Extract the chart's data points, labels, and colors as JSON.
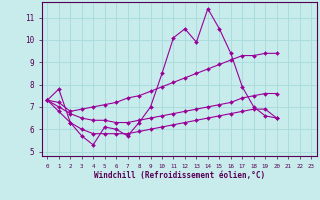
{
  "xlabel": "Windchill (Refroidissement éolien,°C)",
  "bg_color": "#c8ecec",
  "grid_color": "#aadddd",
  "line_color": "#990099",
  "xlim": [
    -0.5,
    23.5
  ],
  "ylim": [
    4.8,
    11.7
  ],
  "yticks": [
    5,
    6,
    7,
    8,
    9,
    10,
    11
  ],
  "xticks": [
    0,
    1,
    2,
    3,
    4,
    5,
    6,
    7,
    8,
    9,
    10,
    11,
    12,
    13,
    14,
    15,
    16,
    17,
    18,
    19,
    20,
    21,
    22,
    23
  ],
  "series": [
    [
      7.3,
      7.8,
      6.3,
      5.7,
      5.3,
      6.1,
      6.0,
      5.7,
      6.3,
      7.0,
      8.5,
      10.1,
      10.5,
      9.9,
      11.4,
      10.5,
      9.4,
      7.9,
      7.0,
      6.6,
      6.5
    ],
    [
      7.3,
      7.2,
      6.8,
      6.9,
      7.0,
      7.1,
      7.2,
      7.4,
      7.5,
      7.7,
      7.9,
      8.1,
      8.3,
      8.5,
      8.7,
      8.9,
      9.1,
      9.3,
      9.3,
      9.4,
      9.4
    ],
    [
      7.3,
      7.0,
      6.7,
      6.5,
      6.4,
      6.4,
      6.3,
      6.3,
      6.4,
      6.5,
      6.6,
      6.7,
      6.8,
      6.9,
      7.0,
      7.1,
      7.2,
      7.4,
      7.5,
      7.6,
      7.6
    ],
    [
      7.3,
      6.8,
      6.3,
      6.0,
      5.8,
      5.8,
      5.8,
      5.8,
      5.9,
      6.0,
      6.1,
      6.2,
      6.3,
      6.4,
      6.5,
      6.6,
      6.7,
      6.8,
      6.9,
      6.9,
      6.5
    ]
  ],
  "x_start": 0,
  "spine_color": "#550055",
  "tick_label_color": "#550055",
  "xlabel_color": "#550055"
}
